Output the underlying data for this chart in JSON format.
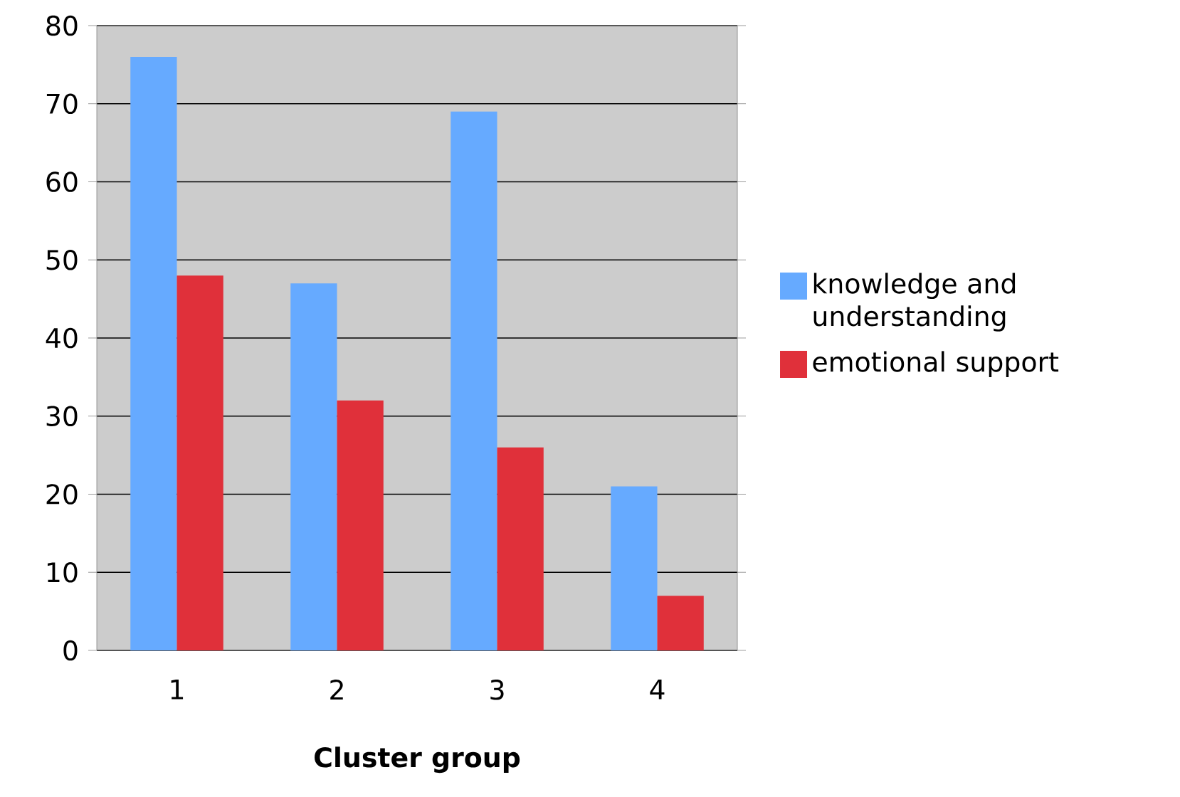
{
  "chart_data": {
    "type": "bar",
    "xlabel": "Cluster group",
    "categories": [
      "1",
      "2",
      "3",
      "4"
    ],
    "series": [
      {
        "name": "knowledge and understanding",
        "color": "#66aaff",
        "values": [
          76,
          47,
          69,
          21
        ]
      },
      {
        "name": "emotional support",
        "color": "#e0303a",
        "values": [
          48,
          32,
          26,
          7
        ]
      }
    ],
    "ylim": [
      0,
      80
    ],
    "yticks": [
      0,
      10,
      20,
      30,
      40,
      50,
      60,
      70,
      80
    ],
    "grid": "y",
    "legend": "right"
  }
}
